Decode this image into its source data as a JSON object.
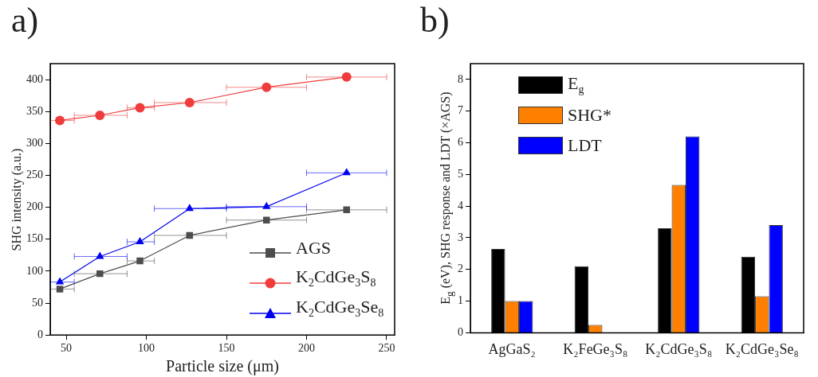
{
  "chart_data": [
    {
      "type": "line",
      "title": "a)",
      "xlabel": "Particle size (μm)",
      "ylabel": "SHG intensity (a.u.)",
      "x": [
        46,
        71,
        96,
        127,
        175,
        225
      ],
      "series": [
        {
          "name": "AGS",
          "color": "#4d4d4d",
          "marker": "square",
          "values": [
            72,
            96,
            116,
            156,
            180,
            196
          ],
          "xerrors": [
            [
              40,
              55
            ],
            [
              55,
              88
            ],
            [
              88,
              105
            ],
            [
              105,
              150
            ],
            [
              150,
              200
            ],
            [
              200,
              250
            ]
          ]
        },
        {
          "name": "K$_{2}$CdGe$_{3}$S$_{8}$",
          "color": "#f03c3c",
          "marker": "circle",
          "values": [
            336,
            344,
            356,
            364,
            388,
            404
          ],
          "xerrors": [
            [
              40,
              55
            ],
            [
              55,
              88
            ],
            [
              88,
              105
            ],
            [
              105,
              150
            ],
            [
              150,
              200
            ],
            [
              200,
              250
            ]
          ]
        },
        {
          "name": "K$_{2}$CdGe$_{3}$Se$_{8}$",
          "color": "#0000f0",
          "marker": "triangle",
          "values": [
            83,
            123,
            146,
            198,
            201,
            254
          ],
          "xerrors": [
            [
              40,
              55
            ],
            [
              55,
              88
            ],
            [
              88,
              105
            ],
            [
              105,
              150
            ],
            [
              150,
              200
            ],
            [
              200,
              250
            ]
          ]
        }
      ],
      "xlim": [
        40,
        255
      ],
      "xticks": [
        50,
        100,
        150,
        200,
        250
      ],
      "ylim": [
        0,
        425
      ],
      "yticks": [
        0,
        50,
        100,
        150,
        200,
        250,
        300,
        350,
        400
      ],
      "grid": false,
      "legend": "bottom right"
    },
    {
      "type": "bar",
      "title": "b)",
      "ylabel": "E$_{g}$ (eV), SHG response and LDT (×AGS)",
      "categories": [
        "AgGaS₂",
        "K₂FeGe₃S₈",
        "K₂CdGe₃S₈",
        "K₂CdGe₃Se₈"
      ],
      "series": [
        {
          "name": "E$_{g}$",
          "color": "#000000",
          "values": [
            2.65,
            2.1,
            3.3,
            2.4
          ]
        },
        {
          "name": "SHG*",
          "color": "#ff8000",
          "values": [
            1.0,
            0.25,
            4.67,
            1.15
          ]
        },
        {
          "name": "LDT",
          "color": "#0000ff",
          "values": [
            1.0,
            null,
            6.2,
            3.4
          ]
        }
      ],
      "ylim": [
        0,
        8.5
      ],
      "yticks": [
        0,
        1,
        2,
        3,
        4,
        5,
        6,
        7,
        8
      ],
      "grid": false,
      "legend": "top left"
    }
  ]
}
